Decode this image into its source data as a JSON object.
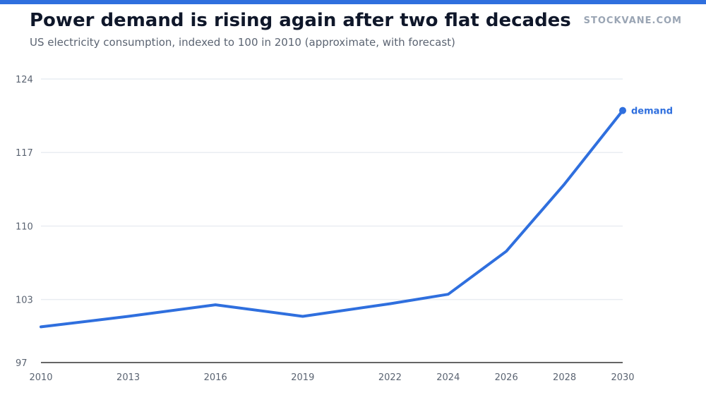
{
  "header": {
    "title": "Power demand is rising again after two flat decades",
    "subtitle": "US electricity consumption, indexed to 100 in 2010 (approximate, with forecast)",
    "brand": "STOCKVANE.COM"
  },
  "colors": {
    "accent": "#2f6fde",
    "line": "#2f6fde",
    "grid": "#e9edf2",
    "axis": "#333333"
  },
  "chart_data": {
    "type": "line",
    "title": "Power demand is rising again after two flat decades",
    "subtitle": "US electricity consumption, indexed to 100 in 2010 (approximate, with forecast)",
    "xlabel": "",
    "ylabel": "",
    "x": [
      2010,
      2013,
      2016,
      2019,
      2022,
      2024,
      2026,
      2028,
      2030
    ],
    "series": [
      {
        "name": "demand",
        "values": [
          100.4,
          101.4,
          102.5,
          101.4,
          102.6,
          103.5,
          107.6,
          114.0,
          121.0
        ]
      }
    ],
    "xticks": [
      "2010",
      "2013",
      "2016",
      "2019",
      "2022",
      "2024",
      "2026",
      "2028",
      "2030"
    ],
    "yticks": [
      97,
      103,
      110,
      117,
      124
    ],
    "ylim": [
      97,
      124
    ],
    "grid": true,
    "legend": "inline label at end of line"
  }
}
